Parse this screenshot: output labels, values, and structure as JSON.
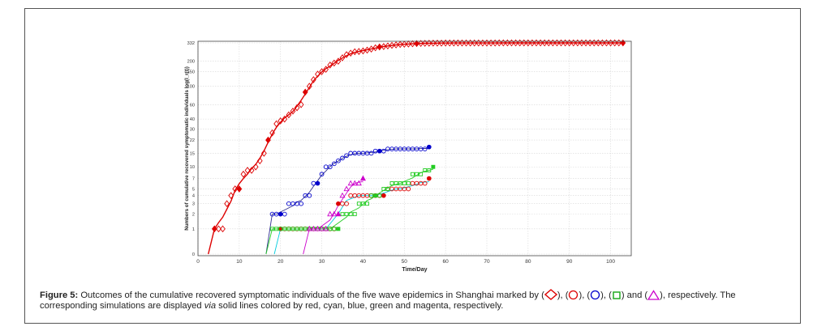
{
  "chart_data": {
    "type": "scatter",
    "title": "",
    "xlabel": "Time/Day",
    "ylabel": "Numbers of cumulative recovered symptomatic individuals log(I_r(t))",
    "xlim": [
      0,
      105
    ],
    "x_ticks": [
      "0",
      "10",
      "20",
      "30",
      "40",
      "50",
      "60",
      "70",
      "80",
      "90",
      "100"
    ],
    "y_scale": "log(1+y)",
    "y_ticks": [
      "0",
      "1",
      "2",
      "3",
      "4",
      "5",
      "7",
      "10",
      "15",
      "22",
      "30",
      "40",
      "60",
      "100",
      "150",
      "200",
      "332"
    ],
    "grid": true,
    "series": [
      {
        "marker": "diamond",
        "color": "#dd0000",
        "line_color": "#dd0000",
        "x": [
          4,
          5,
          6,
          7,
          8,
          9,
          10,
          11,
          12,
          13,
          14,
          15,
          16,
          17,
          18,
          19,
          20,
          21,
          22,
          23,
          24,
          25,
          26,
          27,
          28,
          29,
          30,
          31,
          32,
          33,
          34,
          35,
          36,
          37,
          38,
          39,
          40,
          41,
          42,
          43,
          44,
          45,
          46,
          47,
          48,
          49,
          50,
          51,
          52,
          53,
          54,
          55,
          56,
          57,
          58,
          59,
          60,
          61,
          62,
          63,
          64,
          65,
          66,
          67,
          68,
          69,
          70,
          71,
          72,
          73,
          74,
          75,
          76,
          77,
          78,
          79,
          80,
          81,
          82,
          83,
          84,
          85,
          86,
          87,
          88,
          89,
          90,
          91,
          92,
          93,
          94,
          95,
          96,
          97,
          98,
          99,
          100,
          101,
          102,
          103
        ],
        "y": [
          1,
          1,
          1,
          3,
          4,
          5,
          5,
          8,
          9,
          9,
          10,
          12,
          15,
          22,
          27,
          35,
          38,
          40,
          45,
          50,
          55,
          60,
          85,
          100,
          120,
          140,
          150,
          160,
          180,
          190,
          200,
          220,
          240,
          250,
          260,
          262,
          266,
          272,
          280,
          290,
          297,
          300,
          305,
          310,
          314,
          318,
          320,
          322,
          324,
          326,
          327,
          328,
          329,
          330,
          330,
          330,
          331,
          331,
          331,
          331,
          331,
          331,
          331,
          331,
          331,
          331,
          331,
          331,
          331,
          332,
          332,
          332,
          332,
          332,
          332,
          332,
          332,
          332,
          332,
          332,
          332,
          332,
          332,
          332,
          332,
          332,
          332,
          332,
          332,
          332,
          332,
          332,
          332,
          332,
          332,
          332,
          332,
          332,
          332,
          332
        ],
        "filled_x": [
          4,
          10,
          17,
          26,
          44,
          53,
          103
        ]
      },
      {
        "marker": "circle",
        "color": "#dd0000",
        "line_color": "#00ccdd",
        "x": [
          20,
          21,
          22,
          23,
          24,
          25,
          26,
          27,
          28,
          29,
          30,
          31,
          32,
          33,
          34,
          35,
          36,
          37,
          38,
          39,
          40,
          41,
          42,
          43,
          44,
          45,
          46,
          47,
          48,
          49,
          50,
          51,
          52,
          53,
          54,
          55,
          56
        ],
        "y": [
          1,
          1,
          1,
          1,
          1,
          1,
          1,
          1,
          1,
          1,
          1,
          1,
          1,
          1,
          3,
          3,
          3,
          4,
          4,
          4,
          4,
          4,
          4,
          4,
          4,
          4,
          5,
          5,
          5,
          5,
          5,
          5,
          6,
          6,
          6,
          6,
          7
        ],
        "filled_x": [
          20,
          34,
          45,
          56
        ]
      },
      {
        "marker": "circle",
        "color": "#0000cc",
        "line_color": "#303090",
        "x": [
          18,
          19,
          20,
          21,
          22,
          23,
          24,
          25,
          26,
          27,
          28,
          29,
          30,
          31,
          32,
          33,
          34,
          35,
          36,
          37,
          38,
          39,
          40,
          41,
          42,
          43,
          44,
          45,
          46,
          47,
          48,
          49,
          50,
          51,
          52,
          53,
          54,
          55,
          56
        ],
        "y": [
          2,
          2,
          2,
          2,
          3,
          3,
          3,
          3,
          4,
          4,
          6,
          6,
          8,
          10,
          10,
          11,
          12,
          13,
          14,
          15,
          15,
          15,
          15,
          15,
          15,
          16,
          16,
          16,
          17,
          17,
          17,
          17,
          17,
          17,
          17,
          17,
          17,
          17,
          18
        ],
        "filled_x": [
          20,
          29,
          44,
          56
        ]
      },
      {
        "marker": "square",
        "color": "#22cc22",
        "line_color": "#22cc22",
        "x": [
          18,
          19,
          20,
          21,
          22,
          23,
          24,
          25,
          26,
          27,
          28,
          29,
          30,
          31,
          32,
          33,
          34,
          35,
          36,
          37,
          38,
          39,
          40,
          41,
          42,
          43,
          44,
          45,
          46,
          47,
          48,
          49,
          50,
          51,
          52,
          53,
          54,
          55,
          56,
          57
        ],
        "y": [
          1,
          1,
          1,
          1,
          1,
          1,
          1,
          1,
          1,
          1,
          1,
          1,
          1,
          1,
          1,
          1,
          1,
          2,
          2,
          2,
          2,
          3,
          3,
          3,
          4,
          4,
          4,
          5,
          5,
          6,
          6,
          6,
          6,
          6,
          8,
          8,
          8,
          9,
          9,
          10
        ],
        "filled_x": [
          34,
          43,
          57
        ]
      },
      {
        "marker": "triangle",
        "color": "#cc00cc",
        "line_color": "#cc00cc",
        "x": [
          27,
          28,
          29,
          30,
          31,
          32,
          33,
          34,
          35,
          36,
          37,
          38,
          39,
          40
        ],
        "y": [
          1,
          1,
          1,
          1,
          1,
          2,
          2,
          2,
          4,
          5,
          6,
          6,
          6,
          7
        ],
        "filled_x": [
          34,
          40
        ]
      }
    ]
  },
  "caption": {
    "figure_label": "Figure 5:",
    "text_1": " Outcomes of the cumulative recovered symptomatic individuals of the five wave epidemics in Shanghai marked by (",
    "sep_1": "), (",
    "sep_2": "), (",
    "sep_3": "), (",
    "sep_4": ") and (",
    "text_2": "), respectively. The corresponding simulations are displayed ",
    "via": "via",
    "text_3": " solid lines colored by red, cyan, blue, green and magenta, respectively."
  }
}
